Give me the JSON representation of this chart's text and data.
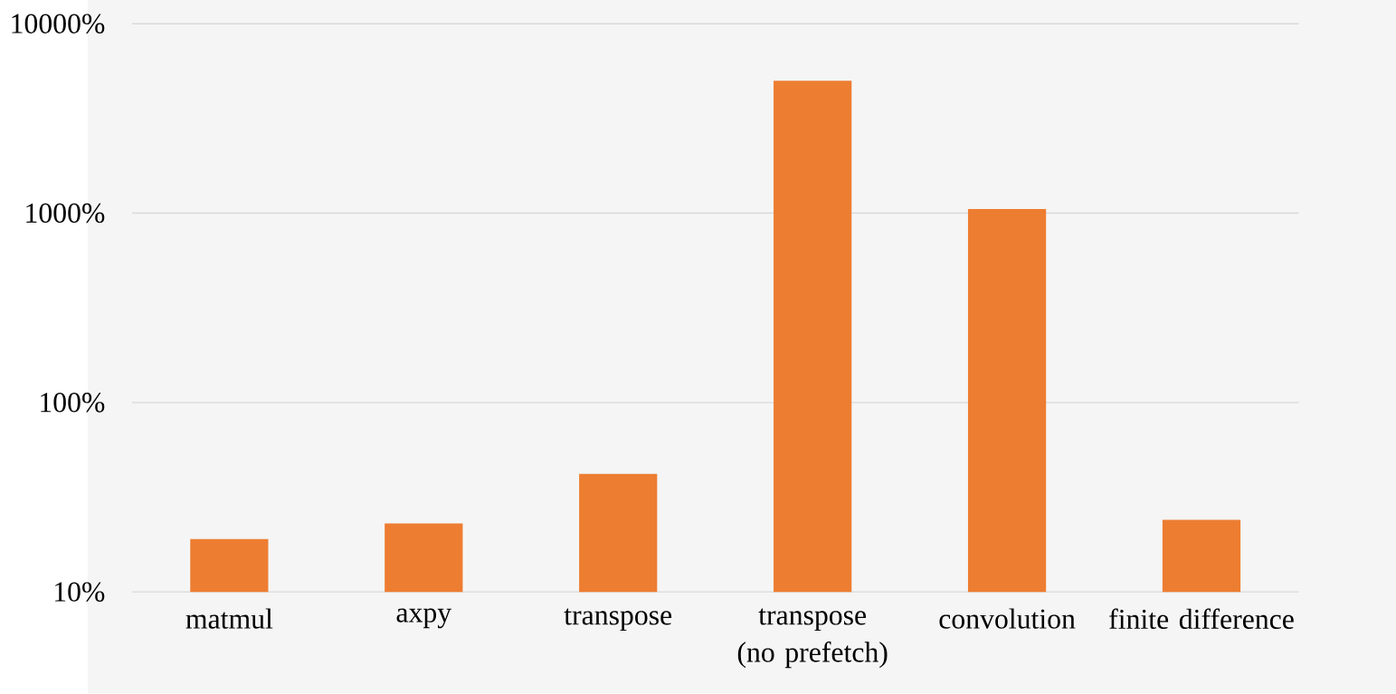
{
  "chart_data": {
    "type": "bar",
    "categories": [
      "matmul",
      "axpy",
      "transpose",
      "transpose (no prefetch)",
      "convolution",
      "finite difference"
    ],
    "values": [
      19,
      23,
      42,
      5000,
      1050,
      24
    ],
    "color": "#ed7d31",
    "log": "y",
    "ylim": [
      10,
      10000
    ],
    "yticks": [
      {
        "value": 10,
        "label": "10%"
      },
      {
        "value": 100,
        "label": "100%"
      },
      {
        "value": 1000,
        "label": "1000%"
      },
      {
        "value": 10000,
        "label": "10000%"
      }
    ],
    "grid": "y"
  }
}
